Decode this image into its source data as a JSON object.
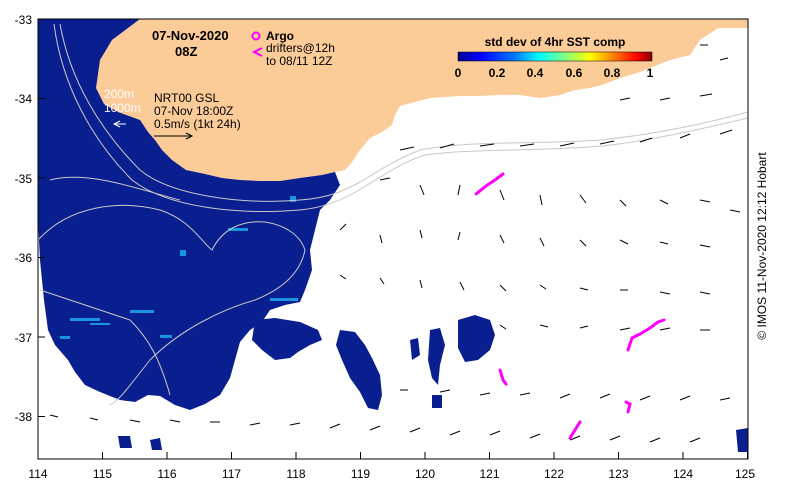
{
  "map": {
    "date_title": "07-Nov-2020",
    "time_title": "08Z",
    "argo_label": "Argo",
    "drifters_label": "drifters@12h",
    "drifters_sub": "to 08/11 12Z",
    "depth_200": "200m",
    "depth_1000": "1000m",
    "product_label": "NRT00 GSL",
    "product_time": "07-Nov 18:00Z",
    "scale_label": "0.5m/s (1kt 24h)",
    "credit": "© IMOS 11-Nov-2020 12:12 Hobart",
    "colorbar": {
      "title": "std dev of 4hr SST comp",
      "ticks": [
        "0",
        "0.2",
        "0.4",
        "0.6",
        "0.8",
        "1"
      ],
      "colors": [
        "#00008f",
        "#0000ff",
        "#0080ff",
        "#00ffff",
        "#80ff80",
        "#ffff00",
        "#ff8000",
        "#ff0000",
        "#800000"
      ]
    },
    "x_ticks": [
      "114",
      "115",
      "116",
      "117",
      "118",
      "119",
      "120",
      "121",
      "122",
      "123",
      "124",
      "125"
    ],
    "y_ticks": [
      "-33",
      "-34",
      "-35",
      "-36",
      "-37",
      "-38"
    ],
    "colors": {
      "land": "#fbcb98",
      "ocean_data": "#0a1f8f",
      "drifter": "#ff00ff",
      "contour": "#d0d0d0"
    }
  }
}
